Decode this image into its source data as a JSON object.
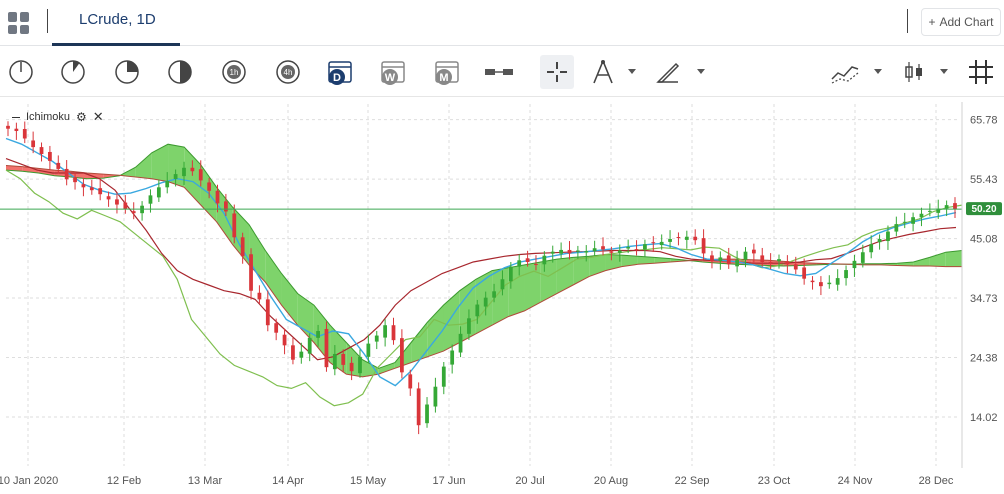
{
  "tab": {
    "title": "LCrude, 1D"
  },
  "add_chart": {
    "label": "Add Chart",
    "plus": "+"
  },
  "toolbar": {
    "timeframes": [
      "1m",
      "5m",
      "15m",
      "30m",
      "1h",
      "4h",
      "D",
      "W",
      "M"
    ],
    "selected_timeframe": "D",
    "icons": [
      "tick-clock-icon",
      "5m-clock-icon",
      "15m-clock-icon",
      "30m-clock-icon",
      "1h-clock-icon",
      "4h-clock-icon",
      "daily-calendar-icon",
      "weekly-calendar-icon",
      "monthly-calendar-icon",
      "price-range-icon",
      "crosshair-icon",
      "drawing-compass-icon",
      "trendline-icon",
      "indicator-icon",
      "candlestick-icon",
      "grid-icon"
    ]
  },
  "indicator": {
    "name": "Ichimoku",
    "settings_icon": "gear-icon",
    "close_icon": "close-icon"
  },
  "colors": {
    "bull": "#35a836",
    "bear": "#d9353a",
    "cloud_bull": "#7ed36b",
    "cloud_bear": "#f2716c",
    "tenkan": "#3aa8e0",
    "kijun": "#a8272e",
    "chikou": "#7fbf4f",
    "price_line": "#3aa650"
  },
  "chart_data": {
    "type": "candlestick",
    "title": "LCrude, 1D",
    "last_price": "50.20",
    "y_ticks": [
      "65.78",
      "55.43",
      "45.08",
      "34.73",
      "24.38",
      "14.02"
    ],
    "y_tick_values": [
      65.78,
      55.43,
      45.08,
      34.73,
      24.38,
      14.02
    ],
    "ylim": [
      5.5,
      68.5
    ],
    "x_ticks": [
      "10 Jan 2020",
      "12 Feb",
      "13 Mar",
      "14 Apr",
      "15 May",
      "17 Jun",
      "20 Jul",
      "20 Aug",
      "22 Sep",
      "23 Oct",
      "24 Nov",
      "28 Dec"
    ],
    "grid": true,
    "price_close": [
      64.2,
      63.8,
      62.5,
      61.0,
      59.8,
      58.6,
      57.2,
      55.4,
      54.9,
      54.0,
      53.5,
      52.8,
      51.9,
      51.0,
      50.2,
      49.5,
      50.8,
      52.6,
      54.0,
      55.1,
      56.3,
      57.4,
      56.8,
      55.2,
      53.4,
      51.2,
      49.8,
      45.3,
      42.0,
      36.0,
      34.5,
      30.0,
      28.7,
      26.5,
      24.0,
      25.4,
      27.8,
      29.0,
      22.7,
      25.0,
      23.1,
      22.0,
      24.5,
      26.8,
      28.2,
      30.0,
      27.4,
      21.8,
      19.0,
      12.6,
      16.2,
      19.3,
      22.8,
      25.6,
      28.5,
      31.2,
      33.6,
      34.8,
      35.9,
      38.0,
      40.2,
      41.3,
      41.0,
      40.6,
      42.1,
      42.8,
      43.1,
      42.5,
      43.0,
      42.9,
      43.4,
      43.2,
      42.6,
      43.0,
      43.6,
      43.2,
      44.1,
      44.3,
      44.5,
      45.0,
      45.2,
      45.4,
      44.8,
      42.5,
      41.2,
      41.8,
      40.6,
      41.4,
      42.8,
      42.5,
      41.0,
      40.8,
      41.5,
      40.6,
      39.7,
      38.1,
      37.5,
      36.8,
      37.4,
      38.2,
      39.6,
      41.2,
      42.7,
      44.1,
      45.0,
      46.3,
      47.6,
      48.0,
      48.8,
      49.4,
      49.9,
      50.3,
      50.9,
      50.2
    ],
    "tenkan": [
      62.5,
      61.5,
      60.0,
      58.5,
      56.5,
      54.5,
      53.5,
      52.8,
      53.0,
      53.8,
      54.8,
      55.5,
      55.0,
      53.0,
      49.5,
      44.0,
      39.5,
      35.0,
      31.0,
      29.5,
      28.0,
      29.0,
      28.5,
      25.0,
      21.0,
      19.5,
      22.0,
      25.5,
      29.0,
      33.0,
      36.5,
      38.5,
      40.0,
      41.0,
      41.5,
      42.0,
      42.5,
      42.7,
      43.0,
      43.3,
      43.7,
      44.0,
      44.2,
      43.5,
      42.3,
      41.5,
      41.3,
      41.0,
      40.5,
      39.8,
      39.0,
      38.6,
      39.0,
      40.8,
      42.5,
      44.5,
      46.0,
      47.0,
      47.8,
      48.5,
      49.0,
      49.6
    ],
    "kijun": [
      59.0,
      58.0,
      57.0,
      56.5,
      56.5,
      56.5,
      55.5,
      53.5,
      50.0,
      46.5,
      42.5,
      39.5,
      38.0,
      37.0,
      36.0,
      35.5,
      34.5,
      31.5,
      29.0,
      26.5,
      24.0,
      24.5,
      26.0,
      27.5,
      30.0,
      33.5,
      36.0,
      37.5,
      39.0,
      40.0,
      41.0,
      41.5,
      42.0,
      42.3,
      42.5,
      42.6,
      42.7,
      42.8,
      42.9,
      43.0,
      43.0,
      43.0,
      42.8,
      42.0,
      41.5,
      41.3,
      41.2,
      41.0,
      40.8,
      40.8,
      40.8,
      41.0,
      41.4,
      41.6,
      42.5,
      43.5,
      44.5,
      45.2,
      45.8,
      46.3,
      46.8,
      47.0
    ],
    "senkou_a": [
      57.0,
      56.8,
      56.5,
      56.0,
      55.8,
      55.5,
      55.6,
      56.0,
      57.5,
      60.0,
      61.5,
      61.0,
      58.0,
      54.0,
      50.5,
      47.5,
      43.0,
      39.0,
      35.5,
      33.5,
      30.0,
      27.0,
      24.0,
      22.5,
      23.5,
      27.0,
      30.5,
      33.5,
      36.0,
      38.0,
      39.5,
      40.0,
      40.5,
      41.0,
      41.5,
      41.8,
      42.0,
      42.3,
      42.2,
      42.0,
      41.8,
      41.6,
      41.3,
      41.0,
      40.8,
      40.6,
      40.5,
      40.4,
      40.3,
      40.4,
      40.5,
      40.6,
      40.6,
      40.7,
      40.7,
      40.8,
      41.0,
      41.8,
      42.7,
      43.0
    ],
    "senkou_b": [
      57.8,
      57.6,
      57.3,
      57.0,
      56.8,
      56.5,
      56.3,
      56.1,
      55.8,
      55.5,
      55.0,
      54.0,
      51.0,
      48.0,
      44.0,
      40.5,
      37.5,
      33.5,
      30.0,
      27.0,
      23.5,
      21.5,
      21.0,
      21.5,
      22.5,
      23.5,
      24.5,
      25.5,
      27.0,
      28.5,
      30.0,
      31.5,
      32.5,
      34.0,
      35.5,
      37.0,
      38.5,
      39.5,
      40.2,
      40.6,
      40.8,
      41.0,
      41.2,
      41.4,
      41.5,
      41.5,
      41.4,
      41.3,
      41.1,
      40.9,
      40.8,
      40.7,
      40.6,
      40.5,
      40.5,
      40.4,
      40.3,
      40.3,
      40.2,
      40.2
    ],
    "chikou": [
      57.0,
      55.5,
      53.0,
      51.5,
      49.5,
      48.5,
      50.0,
      49.0,
      48.0,
      46.0,
      44.0,
      42.0,
      38.0,
      31.0,
      28.0,
      25.0,
      23.0,
      22.0,
      21.0,
      19.5,
      19.0,
      20.0,
      17.5,
      16.0,
      16.5,
      18.0,
      22.5,
      25.0,
      27.5,
      28.0,
      31.0,
      30.0,
      30.2,
      31.0,
      34.0,
      37.0,
      38.5,
      39.4,
      38.5,
      40.0,
      41.5,
      41.8,
      42.3,
      42.6,
      43.0,
      43.2,
      43.5,
      43.3,
      43.1,
      43.6,
      43.4,
      42.0,
      40.8,
      40.0,
      40.3,
      41.1,
      42.0,
      42.8,
      43.5,
      44.0,
      45.5,
      46.5,
      47.0,
      47.8,
      48.5,
      49.8,
      50.5,
      50.9
    ]
  }
}
